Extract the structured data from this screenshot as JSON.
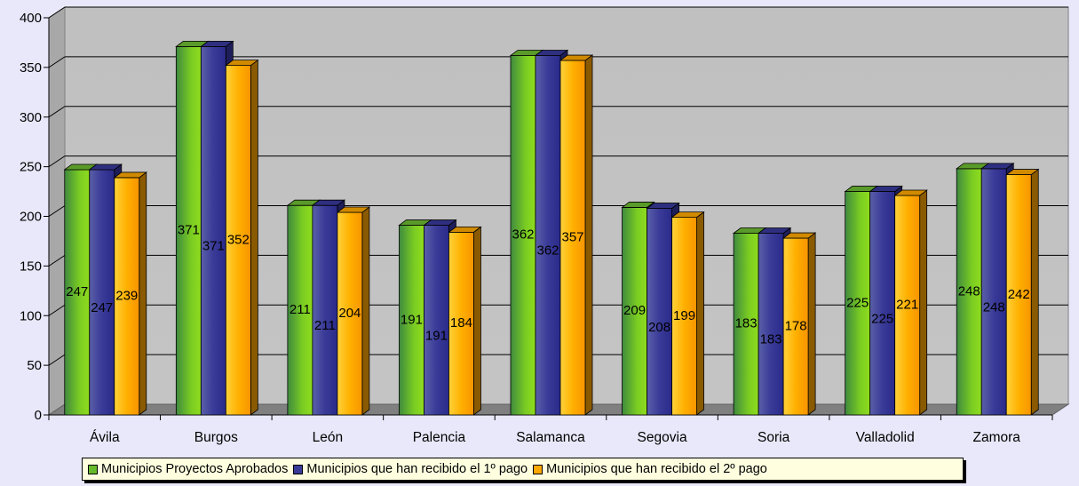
{
  "chart_data": {
    "type": "bar",
    "categories": [
      "Ávila",
      "Burgos",
      "León",
      "Palencia",
      "Salamanca",
      "Segovia",
      "Soria",
      "Valladolid",
      "Zamora"
    ],
    "series": [
      {
        "name": "Municipios Proyectos Aprobados",
        "values": [
          247,
          371,
          211,
          191,
          362,
          209,
          183,
          225,
          248
        ],
        "color": "#66bb2a"
      },
      {
        "name": "Municipios que han recibido el 1º pago",
        "values": [
          247,
          371,
          211,
          191,
          362,
          208,
          183,
          225,
          248
        ],
        "color": "#3a3a98"
      },
      {
        "name": "Municipios que han recibido el 2º pago",
        "values": [
          239,
          352,
          204,
          184,
          357,
          199,
          178,
          221,
          242
        ],
        "color": "#ffa800"
      }
    ],
    "yticks": [
      0,
      50,
      100,
      150,
      200,
      250,
      300,
      350,
      400
    ],
    "ylim": [
      0,
      400
    ],
    "grid": true,
    "legend_position": "bottom",
    "title": "",
    "xlabel": "",
    "ylabel": ""
  }
}
